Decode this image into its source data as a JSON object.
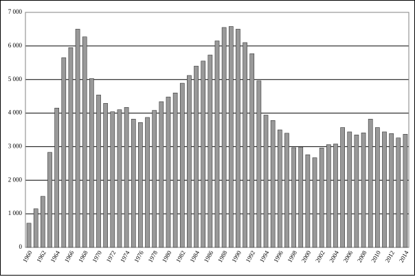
{
  "chart_data": {
    "type": "bar",
    "categories": [
      "1960",
      null,
      "1962",
      null,
      "1964",
      null,
      "1966",
      null,
      "1968",
      null,
      "1970",
      null,
      "1972",
      null,
      "1974",
      null,
      "1976",
      null,
      "1978",
      null,
      "1980",
      null,
      "1982",
      null,
      "1984",
      null,
      "1986",
      null,
      "1988",
      null,
      "1990",
      null,
      "1992",
      null,
      "1994",
      null,
      "1996",
      null,
      "1998",
      null,
      "2000",
      null,
      "2002",
      null,
      "2004",
      null,
      "2006",
      null,
      "2008",
      null,
      "2010",
      null,
      "2012",
      null,
      "2014"
    ],
    "values": [
      720,
      1150,
      1520,
      2830,
      4150,
      5650,
      5950,
      6500,
      6270,
      5030,
      4540,
      4290,
      4040,
      4100,
      4170,
      3820,
      3720,
      3870,
      4080,
      4340,
      4480,
      4600,
      4890,
      5120,
      5400,
      5550,
      5730,
      6150,
      6550,
      6580,
      6500,
      6100,
      5770,
      4960,
      3940,
      3780,
      3500,
      3400,
      2970,
      2990,
      2760,
      2670,
      2960,
      3060,
      3080,
      3570,
      3440,
      3350,
      3410,
      3820,
      3570,
      3440,
      3390,
      3260,
      3370
    ],
    "color": "#999999",
    "ylim": [
      0,
      7000
    ],
    "yticks": [
      0,
      {
        "value": 1000,
        "label": "1 000"
      },
      {
        "value": 2000,
        "label": "2 000"
      },
      {
        "value": 3000,
        "label": "3 000"
      },
      {
        "value": 4000,
        "label": "4 000"
      },
      {
        "value": 5000,
        "label": "5 000"
      },
      {
        "value": 6000,
        "label": "6 000"
      },
      {
        "value": 7000,
        "label": "7 000"
      }
    ],
    "grid": true
  }
}
